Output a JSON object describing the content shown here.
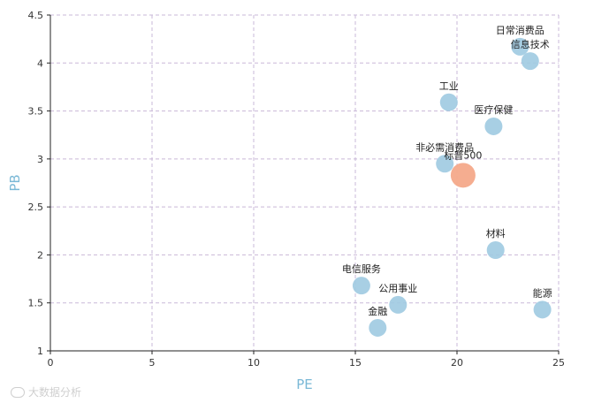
{
  "chart_data": {
    "type": "scatter",
    "title": "",
    "xlabel": "PE",
    "ylabel": "PB",
    "xlim": [
      0,
      25
    ],
    "ylim": [
      1,
      4.5
    ],
    "xticks": [
      "0",
      "5",
      "10",
      "15",
      "20",
      "25"
    ],
    "yticks": [
      "1",
      "1.5",
      "2",
      "2.5",
      "3",
      "3.5",
      "4",
      "4.5"
    ],
    "grid": true,
    "colors": {
      "sector": "#9ecae1",
      "benchmark": "#f4a98a",
      "axis_title": "#7ab8d6",
      "grid": "#c9b8d8"
    },
    "points": [
      {
        "label": "日常消费品",
        "x": 23.1,
        "y": 4.17,
        "group": "sector"
      },
      {
        "label": "信息技术",
        "x": 23.6,
        "y": 4.02,
        "group": "sector"
      },
      {
        "label": "工业",
        "x": 19.6,
        "y": 3.59,
        "group": "sector"
      },
      {
        "label": "医疗保健",
        "x": 21.8,
        "y": 3.34,
        "group": "sector"
      },
      {
        "label": "非必需消费品",
        "x": 19.4,
        "y": 2.95,
        "group": "sector"
      },
      {
        "label": "标普500",
        "x": 20.3,
        "y": 2.83,
        "group": "benchmark"
      },
      {
        "label": "材料",
        "x": 21.9,
        "y": 2.05,
        "group": "sector"
      },
      {
        "label": "电信服务",
        "x": 15.3,
        "y": 1.68,
        "group": "sector"
      },
      {
        "label": "公用事业",
        "x": 17.1,
        "y": 1.48,
        "group": "sector"
      },
      {
        "label": "金融",
        "x": 16.1,
        "y": 1.24,
        "group": "sector"
      },
      {
        "label": "能源",
        "x": 24.2,
        "y": 1.43,
        "group": "sector"
      }
    ]
  },
  "watermark": {
    "text": "大数据分析"
  }
}
